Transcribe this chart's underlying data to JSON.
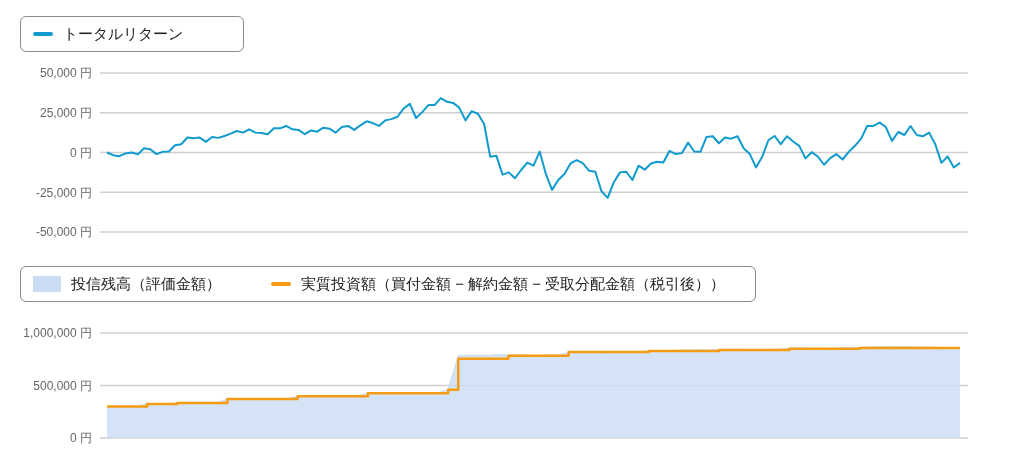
{
  "chart_data": [
    {
      "type": "line",
      "categories": [
        null,
        null,
        null,
        null,
        null,
        null,
        null,
        null,
        null,
        null,
        null,
        null,
        null,
        null,
        null,
        null,
        null,
        null,
        null,
        null,
        null,
        null,
        null,
        null,
        null,
        null,
        null,
        null,
        null,
        null,
        null,
        null,
        null,
        null,
        null,
        null,
        null,
        null,
        null,
        null,
        null,
        null,
        null,
        null,
        null,
        null,
        null,
        null,
        null,
        null,
        null,
        null,
        null,
        null,
        null,
        null,
        null,
        null,
        null,
        null,
        null,
        null,
        null,
        null,
        null,
        null,
        null,
        null,
        null,
        null,
        null,
        null,
        null,
        null,
        null,
        null,
        null,
        null,
        null,
        null,
        null,
        null,
        null,
        null,
        null,
        null,
        null,
        null,
        null,
        null,
        null,
        null,
        null,
        null,
        null,
        null,
        null,
        null,
        null,
        null,
        null,
        null,
        null,
        null,
        null,
        null,
        null,
        null,
        null,
        null,
        null,
        null,
        null,
        null,
        null,
        null,
        null,
        null,
        null,
        null,
        null,
        null,
        null,
        null,
        null,
        null,
        null,
        null,
        null,
        null,
        null,
        null,
        null,
        null,
        null,
        null,
        null,
        null,
        null
      ],
      "series": [
        {
          "name": "トータルリターン",
          "color": "#109bcf",
          "values": [
            0,
            -1700,
            -2300,
            -600,
            0,
            -1200,
            2700,
            2000,
            -1000,
            400,
            600,
            4600,
            5200,
            9400,
            9000,
            9400,
            6700,
            9800,
            9200,
            10400,
            11900,
            13500,
            12500,
            14600,
            12500,
            12300,
            11500,
            15200,
            15200,
            16700,
            14600,
            14200,
            11500,
            13900,
            13100,
            15600,
            15000,
            12500,
            16000,
            16700,
            14200,
            17100,
            19600,
            18500,
            16700,
            20200,
            21000,
            22500,
            27700,
            30600,
            21700,
            25400,
            29800,
            29800,
            34200,
            31900,
            31200,
            28100,
            20200,
            26000,
            24400,
            18100,
            -2700,
            -2100,
            -13900,
            -12500,
            -16200,
            -11000,
            -6300,
            -8300,
            600,
            -13500,
            -23500,
            -17300,
            -13500,
            -6900,
            -4800,
            -6900,
            -11500,
            -12100,
            -24400,
            -28500,
            -18700,
            -12500,
            -12100,
            -17300,
            -8300,
            -10800,
            -6900,
            -5800,
            -6300,
            1000,
            -1000,
            -400,
            6200,
            600,
            400,
            9800,
            10200,
            5800,
            9400,
            8700,
            10200,
            2700,
            -1000,
            -9400,
            -2700,
            7700,
            10400,
            5200,
            10200,
            6900,
            4200,
            -3700,
            200,
            -2500,
            -7700,
            -3500,
            -1000,
            -4400,
            400,
            4200,
            8700,
            16700,
            16700,
            18800,
            16000,
            7300,
            12900,
            11000,
            16700,
            11000,
            10200,
            12500,
            5200,
            -6500,
            -2500,
            -9400,
            -6500
          ]
        }
      ],
      "ylim": [
        -50000,
        50000
      ],
      "yticks": [
        {
          "value": -50000,
          "label": "-50,000 円"
        },
        {
          "value": -25000,
          "label": "-25,000 円"
        },
        {
          "value": 0,
          "label": "0 円"
        },
        {
          "value": 25000,
          "label": "25,000 円"
        },
        {
          "value": 50000,
          "label": "50,000 円"
        }
      ],
      "grid": "y",
      "legend": "top left",
      "tick_labels": "y"
    },
    {
      "type": "area",
      "categories": [
        null,
        null,
        null,
        null,
        null,
        null,
        null,
        null,
        null,
        null,
        null,
        null,
        null,
        null,
        null,
        null,
        null,
        null,
        null,
        null,
        null,
        null,
        null,
        null,
        null,
        null,
        null,
        null,
        null,
        null,
        null,
        null,
        null,
        null,
        null,
        null,
        null,
        null,
        null,
        null,
        null,
        null,
        null,
        null,
        null,
        null,
        null,
        null,
        null,
        null,
        null,
        null,
        null,
        null,
        null,
        null,
        null,
        null,
        null,
        null,
        null,
        null,
        null,
        null,
        null,
        null,
        null,
        null,
        null,
        null,
        null,
        null,
        null,
        null,
        null,
        null,
        null,
        null,
        null,
        null,
        null,
        null,
        null,
        null,
        null,
        null
      ],
      "series": [
        {
          "type": "area",
          "name": "投信残高（評価金額）",
          "color": "#c9dcf3",
          "values": [
            300000,
            300000,
            300000,
            300000,
            326000,
            326000,
            326000,
            335000,
            335000,
            335000,
            335000,
            335000,
            374000,
            374000,
            374000,
            374000,
            374000,
            374000,
            374000,
            400000,
            400000,
            400000,
            400000,
            400000,
            400000,
            400000,
            430000,
            430000,
            430000,
            430000,
            430000,
            430000,
            430000,
            430000,
            465000,
            785000,
            787000,
            788000,
            786000,
            795000,
            790000,
            788000,
            787000,
            786000,
            788000,
            790000,
            815000,
            812000,
            810000,
            808000,
            805000,
            812000,
            818000,
            822000,
            830000,
            832000,
            834000,
            836000,
            838000,
            840000,
            838000,
            842000,
            845000,
            844000,
            842000,
            840000,
            842000,
            845000,
            855000,
            856000,
            855000,
            853000,
            852000,
            855000,
            858000,
            862000,
            866000,
            870000,
            872000,
            870000,
            868000,
            866000,
            866000,
            862000,
            860000,
            857000
          ]
        },
        {
          "type": "step",
          "name": "実質投資額（買付金額 − 解約金額 − 受取分配金額（税引後））",
          "color": "#f59c14",
          "values": [
            300000,
            300000,
            300000,
            300000,
            325000,
            325000,
            325000,
            333000,
            333000,
            333000,
            333000,
            333000,
            371000,
            371000,
            371000,
            371000,
            371000,
            371000,
            371000,
            397000,
            397000,
            397000,
            397000,
            397000,
            397000,
            397000,
            426000,
            426000,
            426000,
            426000,
            426000,
            426000,
            426000,
            426000,
            460000,
            755000,
            755000,
            755000,
            755000,
            755000,
            784000,
            784000,
            784000,
            784000,
            784000,
            784000,
            819000,
            819000,
            819000,
            819000,
            819000,
            819000,
            819000,
            819000,
            829000,
            829000,
            829000,
            829000,
            829000,
            829000,
            829000,
            838000,
            838000,
            838000,
            838000,
            838000,
            838000,
            838000,
            850000,
            850000,
            850000,
            850000,
            850000,
            850000,
            850000,
            857000,
            857000,
            857000,
            857000,
            857000,
            857000,
            857000,
            857000,
            857000,
            857000,
            857000
          ]
        }
      ],
      "ylim": [
        0,
        1000000
      ],
      "yticks": [
        {
          "value": 0,
          "label": "0 円"
        },
        {
          "value": 500000,
          "label": "500,000 円"
        },
        {
          "value": 1000000,
          "label": "1,000,000 円"
        }
      ],
      "grid": "y",
      "legend": "top left",
      "tick_labels": "y"
    }
  ]
}
